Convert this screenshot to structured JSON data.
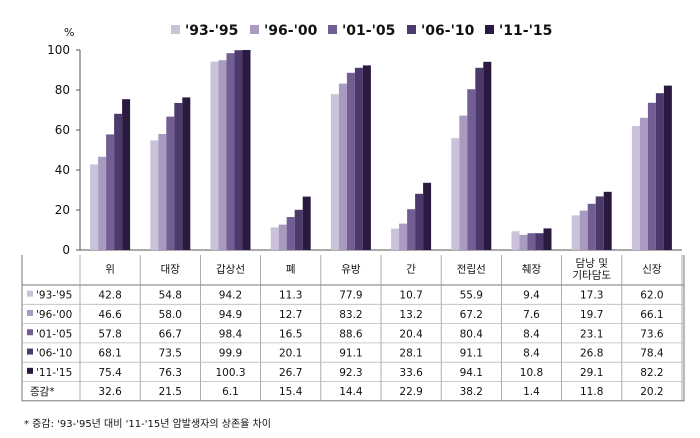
{
  "chart_data": {
    "type": "bar",
    "unit": "%",
    "ylim": [
      0,
      100
    ],
    "yticks": [
      0,
      20,
      40,
      60,
      80,
      100
    ],
    "categories": [
      "위",
      "대장",
      "갑상선",
      "폐",
      "유방",
      "간",
      "전립선",
      "췌장",
      "담낭 및 기타담도",
      "신장"
    ],
    "category_lines": [
      [
        "위"
      ],
      [
        "대장"
      ],
      [
        "갑상선"
      ],
      [
        "폐"
      ],
      [
        "유방"
      ],
      [
        "간"
      ],
      [
        "전립선"
      ],
      [
        "췌장"
      ],
      [
        "담낭 및",
        "기타담도"
      ],
      [
        "신장"
      ]
    ],
    "series": [
      {
        "name": "'93-'95",
        "color": "#c9c2d9",
        "values": [
          42.8,
          54.8,
          94.2,
          11.3,
          77.9,
          10.7,
          55.9,
          9.4,
          17.3,
          62.0
        ]
      },
      {
        "name": "'96-'00",
        "color": "#a89bbf",
        "values": [
          46.6,
          58.0,
          94.9,
          12.7,
          83.2,
          13.2,
          67.2,
          7.6,
          19.7,
          66.1
        ]
      },
      {
        "name": "'01-'05",
        "color": "#735e94",
        "values": [
          57.8,
          66.7,
          98.4,
          16.5,
          88.6,
          20.4,
          80.4,
          8.4,
          23.1,
          73.6
        ]
      },
      {
        "name": "'06-'10",
        "color": "#4d3a6c",
        "values": [
          68.1,
          73.5,
          99.9,
          20.1,
          91.1,
          28.1,
          91.1,
          8.4,
          26.8,
          78.4
        ]
      },
      {
        "name": "'11-'15",
        "color": "#2a1a40",
        "values": [
          75.4,
          76.3,
          100.3,
          26.7,
          92.3,
          33.6,
          94.1,
          10.8,
          29.1,
          82.2
        ]
      }
    ],
    "table_rows": [
      {
        "label": "'93-'95",
        "values": [
          "42.8",
          "54.8",
          "94.2",
          "11.3",
          "77.9",
          "10.7",
          "55.9",
          "9.4",
          "17.3",
          "62.0"
        ]
      },
      {
        "label": "'96-'00",
        "values": [
          "46.6",
          "58.0",
          "94.9",
          "12.7",
          "83.2",
          "13.2",
          "67.2",
          "7.6",
          "19.7",
          "66.1"
        ]
      },
      {
        "label": "'01-'05",
        "values": [
          "57.8",
          "66.7",
          "98.4",
          "16.5",
          "88.6",
          "20.4",
          "80.4",
          "8.4",
          "23.1",
          "73.6"
        ]
      },
      {
        "label": "'06-'10",
        "values": [
          "68.1",
          "73.5",
          "99.9",
          "20.1",
          "91.1",
          "28.1",
          "91.1",
          "8.4",
          "26.8",
          "78.4"
        ]
      },
      {
        "label": "'11-'15",
        "values": [
          "75.4",
          "76.3",
          "100.3",
          "26.7",
          "92.3",
          "33.6",
          "94.1",
          "10.8",
          "29.1",
          "82.2"
        ]
      },
      {
        "label": "증감*",
        "values": [
          "32.6",
          "21.5",
          "6.1",
          "15.4",
          "14.4",
          "22.9",
          "38.2",
          "1.4",
          "11.8",
          "20.2"
        ]
      }
    ],
    "legend_position": "top",
    "grid": false
  },
  "footnote": "* 증감: '93-'95년 대비 '11-'15년 암발생자의 상존율 차이"
}
